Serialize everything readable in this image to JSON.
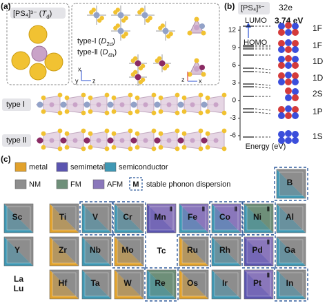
{
  "panel_a": {
    "label": "(a)",
    "td_label": [
      "[PS₄]³⁻ (",
      "T",
      "d",
      ")"
    ],
    "type1_label": [
      "type-Ⅰ (",
      "D",
      "2d",
      ")"
    ],
    "type2_label": [
      "type-Ⅱ (",
      "D",
      "4h",
      ")"
    ],
    "axes1": [
      "x",
      "y",
      "z"
    ],
    "axes2": [
      "z",
      "x"
    ],
    "chain1": "type Ⅰ",
    "chain2": "type Ⅱ"
  },
  "panel_b": {
    "label": "(b)",
    "species": "[PS₄]³⁻",
    "electrons": "32e",
    "lumo": "LUMO",
    "homo": "HOMO",
    "gap": "3.74 eV",
    "yticks": [
      12,
      9,
      6,
      3,
      0,
      -3,
      -6
    ],
    "axis_label": "Energy (eV)",
    "orbitals": [
      "1F",
      "1F",
      "1D",
      "1D",
      "2S",
      "1P",
      "1S"
    ]
  },
  "panel_c": {
    "label": "(c)",
    "legend_type": [
      {
        "label": "metal",
        "color": "#e2a22c"
      },
      {
        "label": "semimetal",
        "color": "#5b55b0"
      },
      {
        "label": "semiconductor",
        "color": "#3f98b4"
      }
    ],
    "legend_magnetic": [
      {
        "label": "NM",
        "color": "#8d8d8d"
      },
      {
        "label": "FM",
        "color": "#6e8f79"
      },
      {
        "label": "AFM",
        "color": "#8a77bb"
      }
    ],
    "legend_phonon": {
      "symbol": "M",
      "label": "stable phonon dispersion"
    },
    "rows": [
      [
        null,
        null,
        null,
        null,
        null,
        null,
        null,
        null,
        {
          "symbol": "B",
          "fill": "#3f98b4",
          "magnet": "#8d8d8d",
          "dashed": true
        }
      ],
      [
        {
          "symbol": "Sc",
          "fill": "#3f98b4",
          "magnet": "#8d8d8d"
        },
        {
          "symbol": "Ti",
          "fill": "#e2a22c",
          "magnet": "#8d8d8d"
        },
        {
          "symbol": "V",
          "fill": "#3f98b4",
          "magnet": "#8d8d8d",
          "dashed": true
        },
        {
          "symbol": "Cr",
          "fill": "#3f98b4",
          "magnet": "#8d8d8d",
          "dashed": true
        },
        {
          "symbol": "Mn",
          "fill": "#5b55b0",
          "magnet": "#8a77bb",
          "mark": "Ⅱ"
        },
        {
          "symbol": "Fe",
          "fill": "#3f98b4",
          "magnet": "#8a77bb",
          "mark": "Ⅱ"
        },
        {
          "symbol": "Co",
          "fill": "#3f98b4",
          "magnet": "#8a77bb",
          "mark": "Ⅱ",
          "dashed": true
        },
        {
          "symbol": "Ni",
          "fill": "#3f98b4",
          "magnet": "#6e8f79",
          "mark": "Ⅱ",
          "dashed": true
        },
        {
          "symbol": "Al",
          "fill": "#3f98b4",
          "magnet": "#8d8d8d"
        }
      ],
      [
        {
          "symbol": "Y",
          "fill": "#3f98b4",
          "magnet": "#8d8d8d"
        },
        {
          "symbol": "Zr",
          "fill": "#e2a22c",
          "magnet": "#8d8d8d"
        },
        {
          "symbol": "Nb",
          "fill": "#3f98b4",
          "magnet": "#8d8d8d"
        },
        {
          "symbol": "Mo",
          "fill": "#e2a22c",
          "magnet": "#8d8d8d",
          "dashed": true
        },
        {
          "symbol": "Tc"
        },
        {
          "symbol": "Ru",
          "fill": "#e2a22c",
          "magnet": "#8d8d8d",
          "dashed": true
        },
        {
          "symbol": "Rh",
          "fill": "#3f98b4",
          "magnet": "#8d8d8d"
        },
        {
          "symbol": "Pd",
          "fill": "#5b55b0",
          "magnet": "#8a77bb",
          "mark": "Ⅱ",
          "dashed": true
        },
        {
          "symbol": "Ga",
          "fill": "#3f98b4",
          "magnet": "#8d8d8d"
        }
      ],
      [
        {
          "symbol": "La",
          "symbol2": "Lu"
        },
        {
          "symbol": "Hf",
          "fill": "#e2a22c",
          "magnet": "#8d8d8d"
        },
        {
          "symbol": "Ta",
          "fill": "#3f98b4",
          "magnet": "#8d8d8d"
        },
        {
          "symbol": "W",
          "fill": "#e2a22c",
          "magnet": "#8d8d8d"
        },
        {
          "symbol": "Re",
          "fill": "#3f98b4",
          "magnet": "#6e8f79",
          "dashed": true
        },
        {
          "symbol": "Os",
          "fill": "#e2a22c",
          "magnet": "#8d8d8d"
        },
        {
          "symbol": "Ir",
          "fill": "#3f98b4",
          "magnet": "#8d8d8d"
        },
        {
          "symbol": "Pt",
          "fill": "#5b55b0",
          "magnet": "#8a77bb",
          "mark": "Ⅱ"
        },
        {
          "symbol": "In",
          "fill": "#3f98b4",
          "magnet": "#8d8d8d",
          "dashed": true
        }
      ]
    ]
  }
}
